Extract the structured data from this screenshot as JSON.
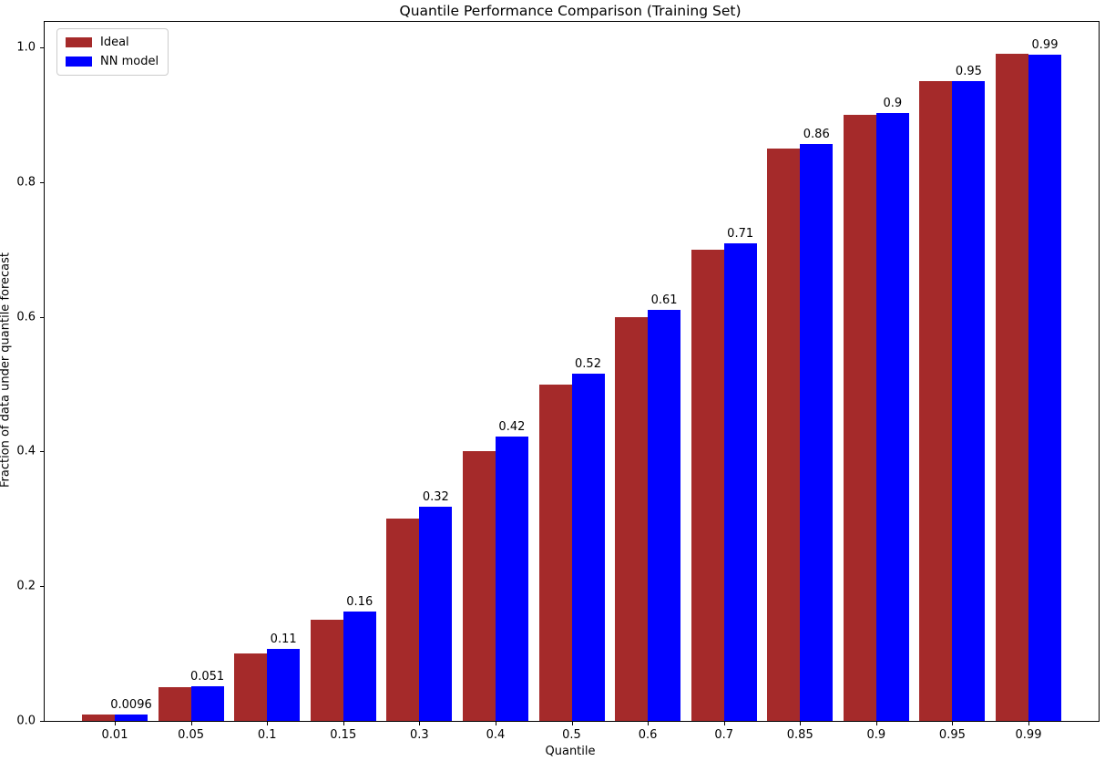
{
  "figure": {
    "title": "Quantile Performance Comparison (Training Set)",
    "xlabel": "Quantile",
    "ylabel": "Fraction of data under quantile forecast"
  },
  "legend": {
    "items": [
      {
        "label": "Ideal",
        "color": "#a52a2a"
      },
      {
        "label": "NN model",
        "color": "#0000ff"
      }
    ]
  },
  "chart_data": {
    "type": "bar",
    "title": "Quantile Performance Comparison (Training Set)",
    "xlabel": "Quantile",
    "ylabel": "Fraction of data under quantile forecast",
    "categories": [
      "0.01",
      "0.05",
      "0.1",
      "0.15",
      "0.3",
      "0.4",
      "0.5",
      "0.6",
      "0.7",
      "0.85",
      "0.9",
      "0.95",
      "0.99"
    ],
    "series": [
      {
        "name": "Ideal",
        "color": "#a52a2a",
        "values": [
          0.01,
          0.05,
          0.1,
          0.15,
          0.3,
          0.4,
          0.5,
          0.6,
          0.7,
          0.85,
          0.9,
          0.95,
          0.99
        ]
      },
      {
        "name": "NN model",
        "color": "#0000ff",
        "values": [
          0.0096,
          0.051,
          0.107,
          0.163,
          0.318,
          0.422,
          0.516,
          0.611,
          0.709,
          0.857,
          0.902,
          0.95,
          0.989
        ],
        "bar_labels": [
          "0.0096",
          "0.051",
          "0.11",
          "0.16",
          "0.32",
          "0.42",
          "0.52",
          "0.61",
          "0.71",
          "0.86",
          "0.9",
          "0.95",
          "0.99"
        ]
      }
    ],
    "yticks": [
      0.0,
      0.2,
      0.4,
      0.6,
      0.8,
      1.0
    ],
    "ytick_labels": [
      "0.0",
      "0.2",
      "0.4",
      "0.6",
      "0.8",
      "1.0"
    ],
    "ylim": [
      0,
      1.038
    ],
    "grid": false,
    "legend_position": "upper left"
  }
}
